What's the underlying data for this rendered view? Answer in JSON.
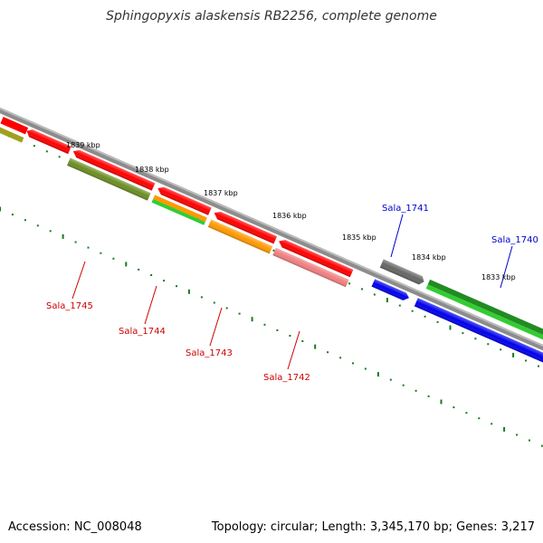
{
  "title": "Sphingopyxis alaskensis RB2256, complete genome",
  "footer": {
    "accession": "Accession: NC_008048",
    "summary": "Topology: circular; Length: 3,345,170 bp; Genes: 3,217"
  },
  "colors": {
    "backbone": "#888888",
    "ticks": "#1a7a1a",
    "red": "#ff0000",
    "pink": "#f08080",
    "olive": "#6b8e23",
    "orange": "#ff9900",
    "lightgreen": "#33cc33",
    "darkgreen": "#228b22",
    "gray": "#666666",
    "blue": "#0000ee",
    "label_minus": "#cc0000",
    "label_plus": "#0000cc"
  },
  "kbp_labels": [
    "1839 kbp",
    "1838 kbp",
    "1837 kbp",
    "1836 kbp",
    "1835 kbp",
    "1834 kbp",
    "1833 kbp"
  ],
  "gene_labels": [
    {
      "text": "Sala_1745",
      "strand": "minus"
    },
    {
      "text": "Sala_1744",
      "strand": "minus"
    },
    {
      "text": "Sala_1743",
      "strand": "minus"
    },
    {
      "text": "Sala_1742",
      "strand": "minus"
    },
    {
      "text": "Sala_1741",
      "strand": "plus"
    },
    {
      "text": "Sala_1740",
      "strand": "plus"
    }
  ]
}
